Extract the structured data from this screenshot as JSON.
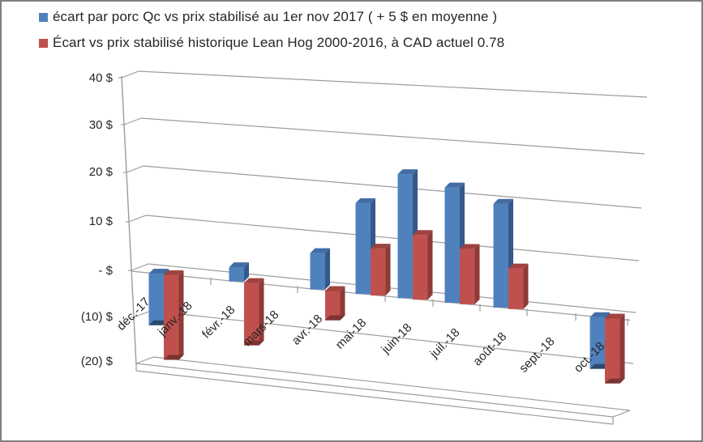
{
  "legend": {
    "items": [
      {
        "id": "qc",
        "label": "écart par porc Qc vs prix stabilisé  au 1er nov 2017 ( + 5 $ en moyenne )",
        "color": "#4F81BD"
      },
      {
        "id": "historique",
        "label": "Écart vs prix stabilisé    historique Lean Hog 2000-2016, à CAD actuel 0.78",
        "color": "#C0504D"
      }
    ]
  },
  "chart_data": {
    "type": "bar",
    "projection": "3d-column",
    "title": "",
    "xlabel": "",
    "ylabel": "",
    "categories": [
      "déc.-17",
      "janv.-18",
      "févr.-18",
      "mars-18",
      "avr.-18",
      "mai-18",
      "juin-18",
      "juil.-18",
      "août-18",
      "sept.-18",
      "oct.-18"
    ],
    "series": [
      {
        "name": "écart par porc Qc vs prix stabilisé  au 1er nov 2017 ( + 5 $ en moyenne )",
        "color_front": "#4F81BD",
        "color_top": "#426DA4",
        "color_side": "#36598B",
        "color_bottom": "#2C4A70",
        "values": [
          -11,
          null,
          3,
          null,
          7.5,
          18.5,
          25,
          23,
          20.5,
          null,
          -10
        ]
      },
      {
        "name": "Écart vs prix stabilisé    historique Lean Hog 2000-2016, à CAD actuel 0.78",
        "color_front": "#C0504D",
        "color_top": "#A04340",
        "color_side": "#8C3B39",
        "color_bottom": "#7A3432",
        "values": [
          -18,
          null,
          -13,
          null,
          -6,
          9.5,
          13,
          11,
          8,
          null,
          -12.5
        ]
      }
    ],
    "y_axis": {
      "tick_values": [
        40,
        30,
        20,
        10,
        0,
        -10,
        -20
      ],
      "tick_labels": [
        "40  $",
        "30  $",
        "20  $",
        "10  $",
        " -    $",
        "(10) $",
        "(20) $"
      ],
      "min": -20,
      "max": 40,
      "unit": "$"
    },
    "grid": true,
    "legend_position": "top-left",
    "line_color": "#9C9C9C"
  }
}
